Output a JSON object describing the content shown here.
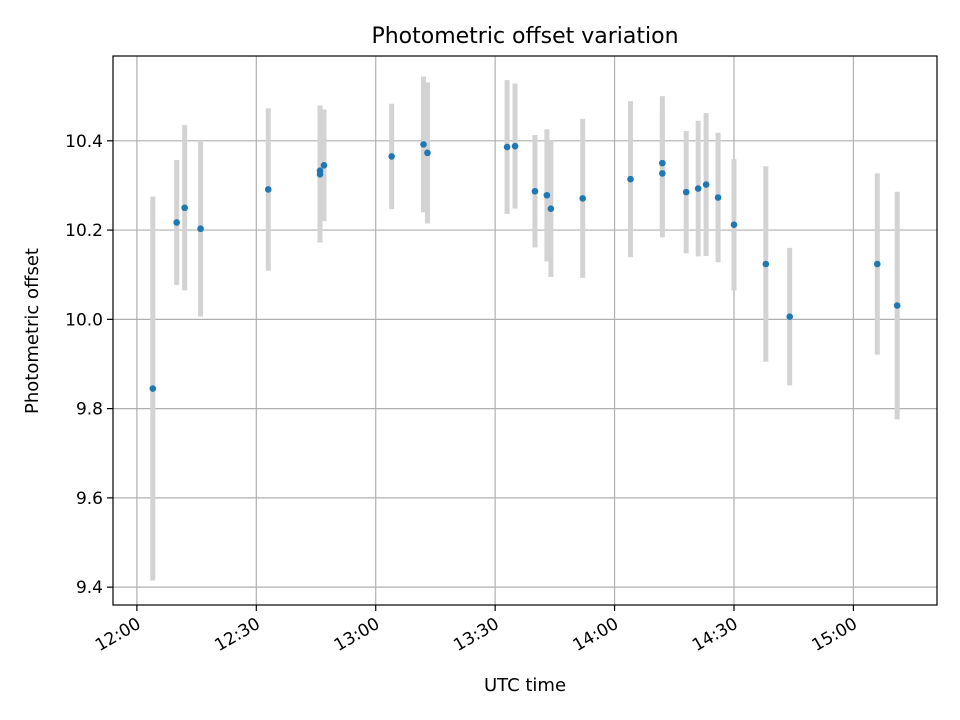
{
  "chart_data": {
    "type": "scatter",
    "title": "Photometric offset variation",
    "xlabel": "UTC time",
    "ylabel": "Photometric offset",
    "x_ticks": [
      "12:00",
      "12:30",
      "13:00",
      "13:30",
      "14:00",
      "14:30",
      "15:00"
    ],
    "y_ticks": [
      "9.4",
      "9.6",
      "9.8",
      "10.0",
      "10.2",
      "10.4"
    ],
    "xlim": [
      "11:54",
      "15:21"
    ],
    "ylim": [
      9.36,
      10.59
    ],
    "grid": true,
    "colors": {
      "marker": "#1f77b4",
      "errorbar": "#d3d3d3",
      "grid": "#b0b0b0"
    },
    "points": [
      {
        "x": "12:04",
        "y": 9.845,
        "err": 0.43
      },
      {
        "x": "12:10",
        "y": 10.217,
        "err": 0.14
      },
      {
        "x": "12:12",
        "y": 10.25,
        "err": 0.185
      },
      {
        "x": "12:16",
        "y": 10.203,
        "err": 0.197
      },
      {
        "x": "12:33",
        "y": 10.291,
        "err": 0.182
      },
      {
        "x": "12:46",
        "y": 10.333,
        "err": 0.146
      },
      {
        "x": "12:46",
        "y": 10.325,
        "err": 0.153
      },
      {
        "x": "12:47",
        "y": 10.345,
        "err": 0.125
      },
      {
        "x": "13:04",
        "y": 10.365,
        "err": 0.118
      },
      {
        "x": "13:12",
        "y": 10.392,
        "err": 0.152
      },
      {
        "x": "13:13",
        "y": 10.373,
        "err": 0.158
      },
      {
        "x": "13:33",
        "y": 10.386,
        "err": 0.15
      },
      {
        "x": "13:35",
        "y": 10.388,
        "err": 0.14
      },
      {
        "x": "13:40",
        "y": 10.287,
        "err": 0.126
      },
      {
        "x": "13:43",
        "y": 10.278,
        "err": 0.148
      },
      {
        "x": "13:44",
        "y": 10.248,
        "err": 0.153
      },
      {
        "x": "13:52",
        "y": 10.271,
        "err": 0.178
      },
      {
        "x": "14:04",
        "y": 10.314,
        "err": 0.175
      },
      {
        "x": "14:12",
        "y": 10.327,
        "err": 0.143
      },
      {
        "x": "14:12",
        "y": 10.35,
        "err": 0.15
      },
      {
        "x": "14:18",
        "y": 10.285,
        "err": 0.137
      },
      {
        "x": "14:21",
        "y": 10.293,
        "err": 0.152
      },
      {
        "x": "14:23",
        "y": 10.302,
        "err": 0.16
      },
      {
        "x": "14:26",
        "y": 10.273,
        "err": 0.145
      },
      {
        "x": "14:30",
        "y": 10.212,
        "err": 0.147
      },
      {
        "x": "14:38",
        "y": 10.124,
        "err": 0.219
      },
      {
        "x": "14:44",
        "y": 10.006,
        "err": 0.154
      },
      {
        "x": "15:06",
        "y": 10.124,
        "err": 0.203
      },
      {
        "x": "15:11",
        "y": 10.031,
        "err": 0.255
      }
    ]
  }
}
